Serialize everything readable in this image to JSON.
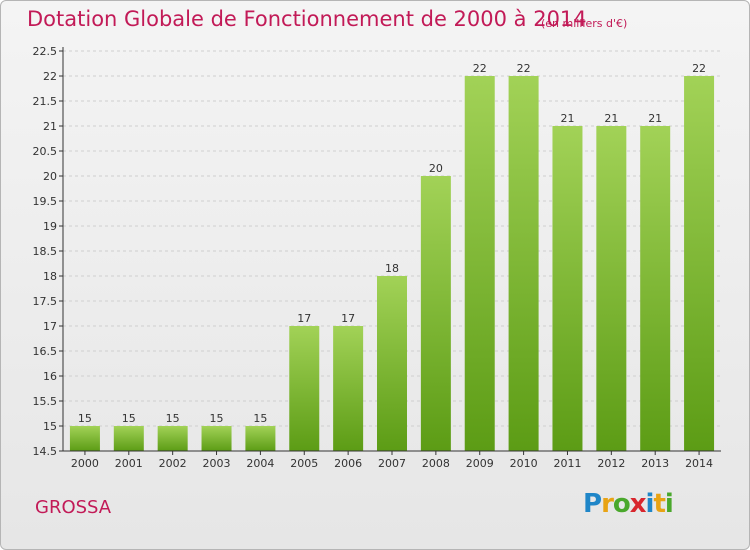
{
  "header": {
    "title": "Dotation Globale de Fonctionnement de 2000 à 2014",
    "subtitle": "(en milliers d'€)"
  },
  "footer": {
    "commune": "GROSSA",
    "logo_letters": [
      "P",
      "r",
      "o",
      "x",
      "i",
      "t",
      "i"
    ]
  },
  "colors": {
    "bar_top": "#a2d257",
    "bar_bottom": "#5c9c15",
    "title": "#c21a57",
    "axis": "#333333"
  },
  "chart_data": {
    "type": "bar",
    "categories": [
      "2000",
      "2001",
      "2002",
      "2003",
      "2004",
      "2005",
      "2006",
      "2007",
      "2008",
      "2009",
      "2010",
      "2011",
      "2012",
      "2013",
      "2014"
    ],
    "values": [
      15,
      15,
      15,
      15,
      15,
      17,
      17,
      18,
      20,
      22,
      22,
      21,
      21,
      21,
      22
    ],
    "data_labels": [
      "15",
      "15",
      "15",
      "15",
      "15",
      "17",
      "17",
      "18",
      "20",
      "22",
      "22",
      "21",
      "21",
      "21",
      "22"
    ],
    "yticks": [
      "14.5",
      "15",
      "15.5",
      "16",
      "16.5",
      "17",
      "17.5",
      "18",
      "18.5",
      "19",
      "19.5",
      "20",
      "20.5",
      "21",
      "21.5",
      "22",
      "22.5"
    ],
    "ylim": [
      14.5,
      22.5
    ],
    "grid": true,
    "xlabel": "",
    "ylabel": ""
  }
}
